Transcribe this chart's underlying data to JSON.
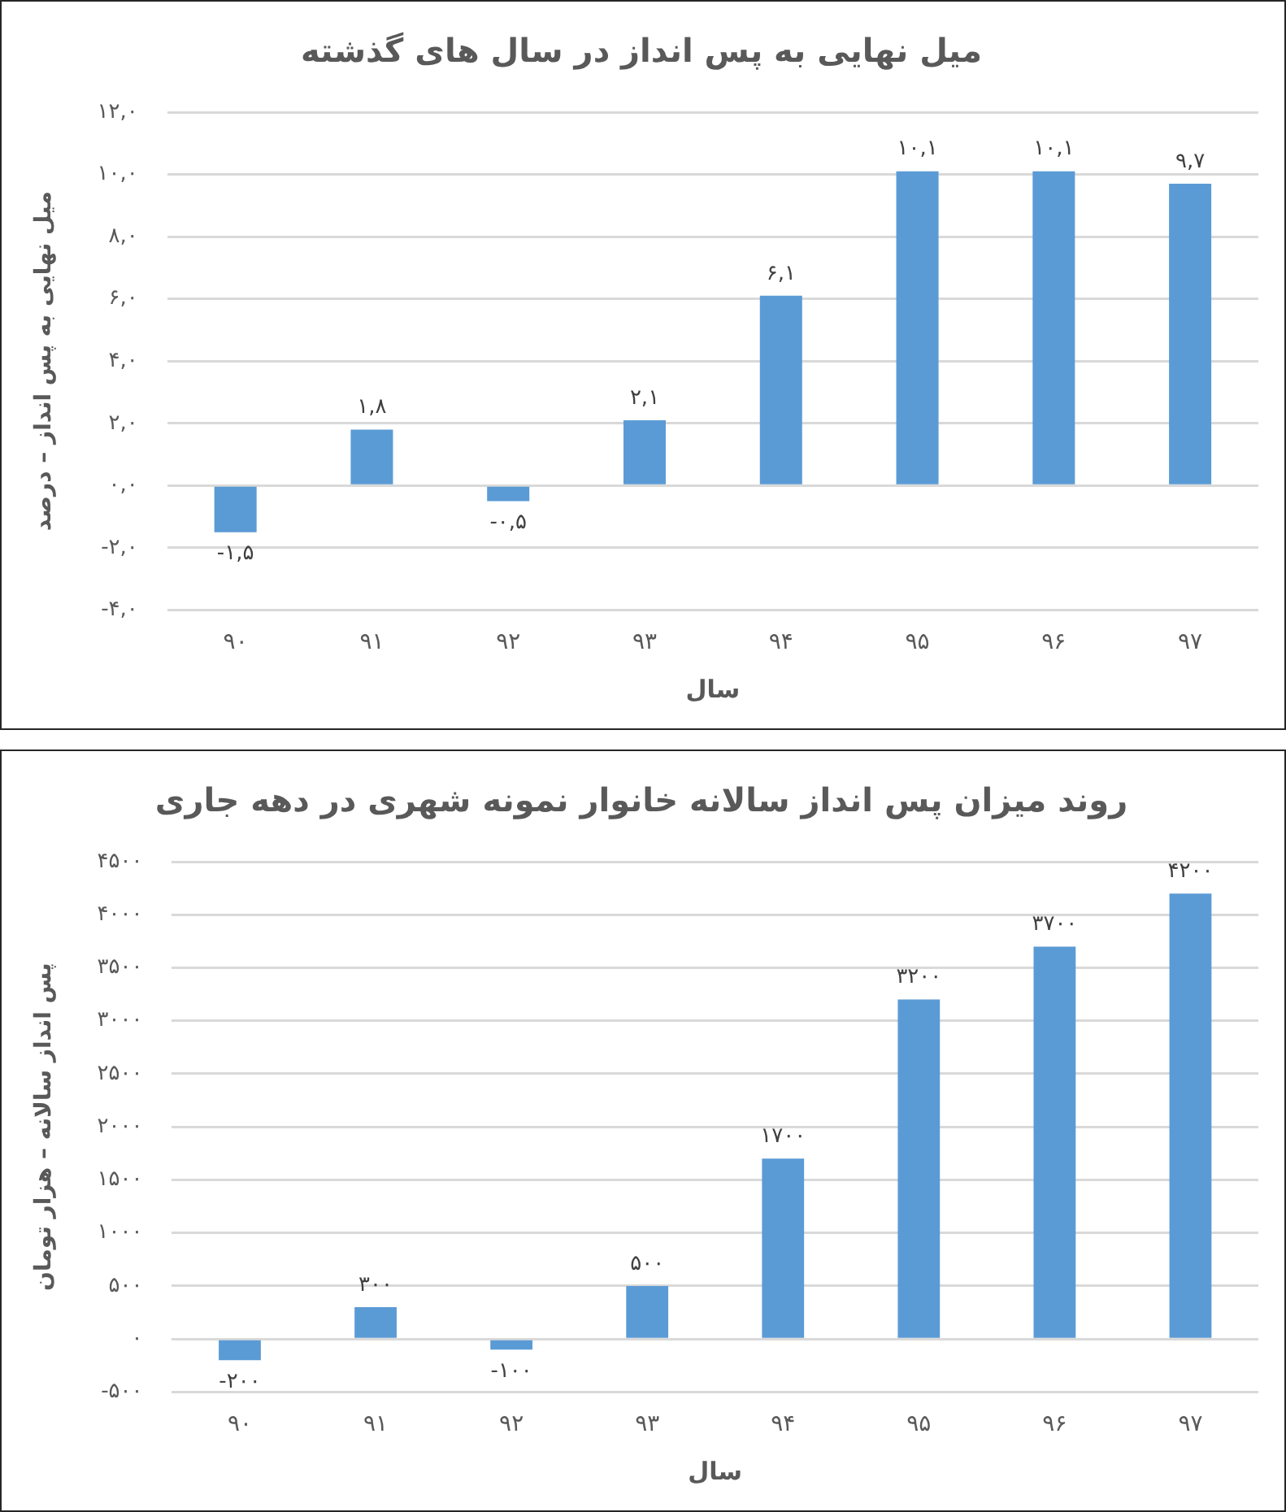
{
  "chart_data": [
    {
      "type": "bar",
      "title": "میل نهایی به پس انداز در سال های گذشته",
      "xlabel": "سال",
      "ylabel": "میل نهایی به پس انداز – درصد",
      "categories": [
        "۹۰",
        "۹۱",
        "۹۲",
        "۹۳",
        "۹۴",
        "۹۵",
        "۹۶",
        "۹۷"
      ],
      "values": [
        -1.5,
        1.8,
        -0.5,
        2.1,
        6.1,
        10.1,
        10.1,
        9.7
      ],
      "color": "#5b9bd5",
      "value_labels": [
        "-۱,۵",
        "۱,۸",
        "-۰,۵",
        "۲,۱",
        "۶,۱",
        "۱۰,۱",
        "۱۰,۱",
        "۹,۷"
      ],
      "ylim": [
        -4,
        12
      ],
      "yticks": [
        {
          "value": -4,
          "label": "-۴,۰"
        },
        {
          "value": -2,
          "label": "-۲,۰"
        },
        {
          "value": 0,
          "label": "۰,۰"
        },
        {
          "value": 2,
          "label": "۲,۰"
        },
        {
          "value": 4,
          "label": "۴,۰"
        },
        {
          "value": 6,
          "label": "۶,۰"
        },
        {
          "value": 8,
          "label": "۸,۰"
        },
        {
          "value": 10,
          "label": "۱۰,۰"
        },
        {
          "value": 12,
          "label": "۱۲,۰"
        }
      ],
      "grid": "y"
    },
    {
      "type": "bar",
      "title": "روند میزان پس انداز سالانه خانوار نمونه شهری در دهه جاری",
      "xlabel": "سال",
      "ylabel": "پس انداز سالانه – هزار تومان",
      "categories": [
        "۹۰",
        "۹۱",
        "۹۲",
        "۹۳",
        "۹۴",
        "۹۵",
        "۹۶",
        "۹۷"
      ],
      "values": [
        -200,
        300,
        -100,
        500,
        1700,
        3200,
        3700,
        4200
      ],
      "color": "#5b9bd5",
      "value_labels": [
        "-۲۰۰",
        "۳۰۰",
        "-۱۰۰",
        "۵۰۰",
        "۱۷۰۰",
        "۳۲۰۰",
        "۳۷۰۰",
        "۴۲۰۰"
      ],
      "ylim": [
        -500,
        4500
      ],
      "yticks": [
        {
          "value": -500,
          "label": "-۵۰۰"
        },
        {
          "value": 0,
          "label": "۰"
        },
        {
          "value": 500,
          "label": "۵۰۰"
        },
        {
          "value": 1000,
          "label": "۱۰۰۰"
        },
        {
          "value": 1500,
          "label": "۱۵۰۰"
        },
        {
          "value": 2000,
          "label": "۲۰۰۰"
        },
        {
          "value": 2500,
          "label": "۲۵۰۰"
        },
        {
          "value": 3000,
          "label": "۳۰۰۰"
        },
        {
          "value": 3500,
          "label": "۳۵۰۰"
        },
        {
          "value": 4000,
          "label": "۴۰۰۰"
        },
        {
          "value": 4500,
          "label": "۴۵۰۰"
        }
      ],
      "grid": "y"
    }
  ]
}
